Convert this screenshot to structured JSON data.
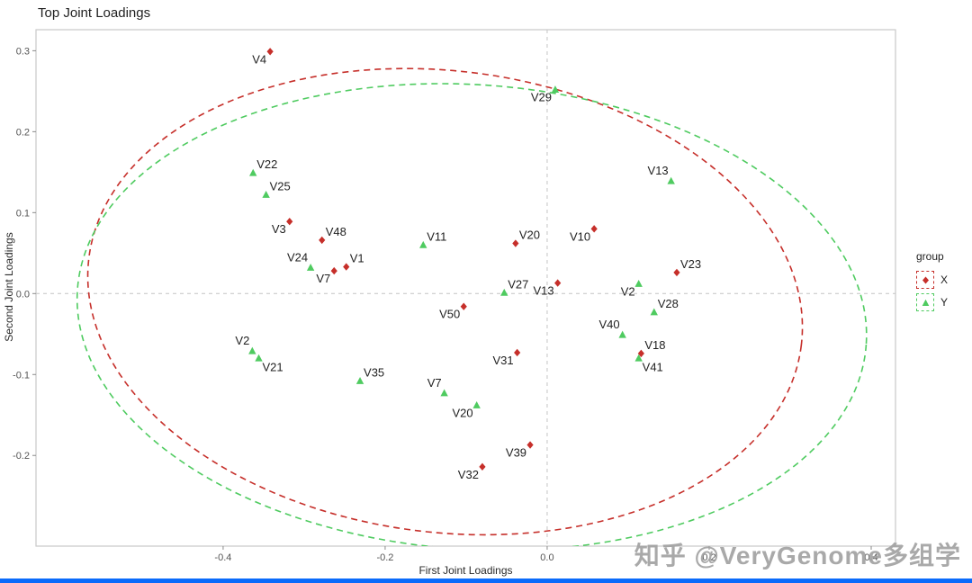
{
  "title": "Top Joint Loadings",
  "watermark": "知乎 @VeryGenome多组学",
  "colors": {
    "x_group": "#c62f2a",
    "y_group": "#4fcb60",
    "panel_border": "#c9c9c9",
    "zero_line": "#c4c4c4",
    "tick_mark": "#8a8a8a",
    "tick_text": "#555555",
    "axis_title": "#2b2b2b",
    "point_label": "#1f1f1f",
    "watermark": "#a0a0a0",
    "bottom_bar": "#0b6bfb"
  },
  "legend": {
    "title": "group",
    "entries": [
      {
        "label": "X",
        "marker": "diamond",
        "color": "#c62f2a"
      },
      {
        "label": "Y",
        "marker": "triangle",
        "color": "#4fcb60"
      }
    ]
  },
  "chart_data": {
    "type": "scatter",
    "title": "Top Joint Loadings",
    "xlabel": "First Joint Loadings",
    "ylabel": "Second Joint Loadings",
    "xlim": [
      -0.631,
      0.43
    ],
    "ylim": [
      -0.312,
      0.326
    ],
    "x_ticks": [
      -0.4,
      -0.2,
      0.0,
      0.2,
      0.4
    ],
    "y_ticks": [
      0.3,
      0.2,
      0.1,
      0.0,
      -0.1,
      -0.2
    ],
    "zero_reference_lines": true,
    "grid": false,
    "legend_position": "right",
    "series": [
      {
        "name": "X",
        "marker": "diamond",
        "color": "#c62f2a",
        "points": [
          {
            "label": "V4",
            "x": -0.342,
            "y": 0.299,
            "lp": "left-below"
          },
          {
            "label": "V3",
            "x": -0.318,
            "y": 0.089,
            "lp": "left-below"
          },
          {
            "label": "V48",
            "x": -0.278,
            "y": 0.066,
            "lp": "right-above"
          },
          {
            "label": "V7",
            "x": -0.263,
            "y": 0.028,
            "lp": "left-below"
          },
          {
            "label": "V1",
            "x": -0.248,
            "y": 0.033,
            "lp": "right-above"
          },
          {
            "label": "V20",
            "x": -0.039,
            "y": 0.062,
            "lp": "right-above"
          },
          {
            "label": "V10",
            "x": 0.058,
            "y": 0.08,
            "lp": "left-below"
          },
          {
            "label": "V13",
            "x": 0.013,
            "y": 0.013,
            "lp": "left-below"
          },
          {
            "label": "V23",
            "x": 0.16,
            "y": 0.026,
            "lp": "right-above"
          },
          {
            "label": "V50",
            "x": -0.103,
            "y": -0.016,
            "lp": "left-below"
          },
          {
            "label": "V31",
            "x": -0.037,
            "y": -0.073,
            "lp": "left-below"
          },
          {
            "label": "V18",
            "x": 0.116,
            "y": -0.074,
            "lp": "right-above"
          },
          {
            "label": "V39",
            "x": -0.021,
            "y": -0.187,
            "lp": "left-below"
          },
          {
            "label": "V32",
            "x": -0.08,
            "y": -0.214,
            "lp": "left-below"
          }
        ]
      },
      {
        "name": "Y",
        "marker": "triangle",
        "color": "#4fcb60",
        "points": [
          {
            "label": "V29",
            "x": 0.01,
            "y": 0.252,
            "lp": "left-below"
          },
          {
            "label": "V13",
            "x": 0.153,
            "y": 0.139,
            "lp": "left-above"
          },
          {
            "label": "V22",
            "x": -0.363,
            "y": 0.149,
            "lp": "right-above"
          },
          {
            "label": "V25",
            "x": -0.347,
            "y": 0.122,
            "lp": "right-above"
          },
          {
            "label": "V24",
            "x": -0.292,
            "y": 0.032,
            "lp": "left-above"
          },
          {
            "label": "V11",
            "x": -0.153,
            "y": 0.06,
            "lp": "right-above"
          },
          {
            "label": "V27",
            "x": -0.053,
            "y": 0.001,
            "lp": "right-above"
          },
          {
            "label": "V2",
            "x": 0.113,
            "y": 0.012,
            "lp": "left-below"
          },
          {
            "label": "V28",
            "x": 0.132,
            "y": -0.023,
            "lp": "right-above"
          },
          {
            "label": "V40",
            "x": 0.093,
            "y": -0.051,
            "lp": "left-above"
          },
          {
            "label": "V41",
            "x": 0.113,
            "y": -0.08,
            "lp": "right-below"
          },
          {
            "label": "V2",
            "x": -0.364,
            "y": -0.071,
            "lp": "left-above"
          },
          {
            "label": "V21",
            "x": -0.356,
            "y": -0.08,
            "lp": "right-below"
          },
          {
            "label": "V35",
            "x": -0.231,
            "y": -0.108,
            "lp": "right-above"
          },
          {
            "label": "V7",
            "x": -0.127,
            "y": -0.123,
            "lp": "left-above"
          },
          {
            "label": "V20",
            "x": -0.087,
            "y": -0.138,
            "lp": "left-below"
          }
        ]
      }
    ],
    "ellipses": [
      {
        "group": "X",
        "cx": -0.126,
        "cy": -0.01,
        "rx": 0.443,
        "ry": 0.285,
        "angle": 7,
        "linetype": "dashed"
      },
      {
        "group": "Y",
        "cx": -0.093,
        "cy": -0.029,
        "rx": 0.488,
        "ry": 0.287,
        "angle": 4,
        "linetype": "dashed"
      }
    ]
  }
}
